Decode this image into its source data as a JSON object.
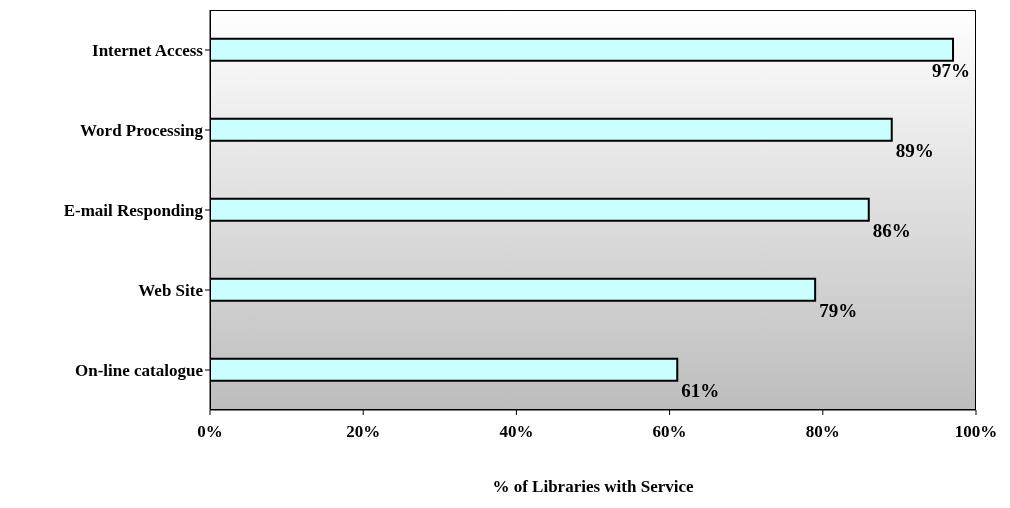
{
  "chart_data": {
    "type": "bar",
    "orientation": "horizontal",
    "xlabel": "% of Libraries with Service",
    "categories": [
      "Internet Access",
      "Word Processing",
      "E-mail Responding",
      "Web Site",
      "On-line catalogue"
    ],
    "values": [
      97,
      89,
      86,
      79,
      61
    ],
    "value_labels": [
      "97%",
      "89%",
      "86%",
      "79%",
      "61%"
    ],
    "color": "#ccffff",
    "xlim": [
      0,
      100
    ],
    "xticks": [
      {
        "value": 0,
        "label": "0%"
      },
      {
        "value": 20,
        "label": "20%"
      },
      {
        "value": 40,
        "label": "40%"
      },
      {
        "value": 60,
        "label": "60%"
      },
      {
        "value": 80,
        "label": "80%"
      },
      {
        "value": 100,
        "label": "100%"
      }
    ],
    "grid": false,
    "legend": false
  }
}
